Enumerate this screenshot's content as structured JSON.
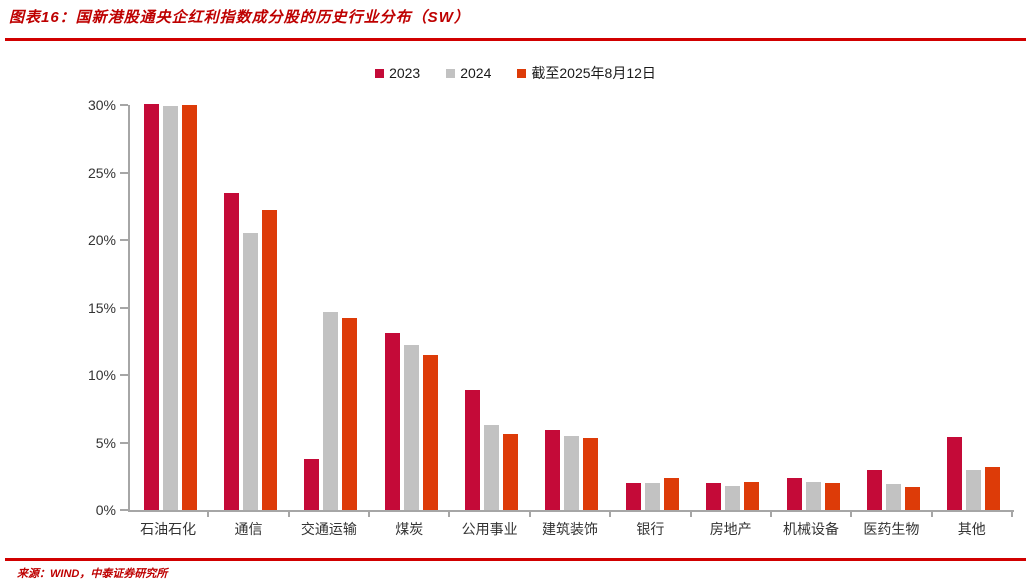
{
  "header": {
    "title": "图表16：国新港股通央企红利指数成分股的历史行业分布（SW）"
  },
  "footer": {
    "source": "来源：WIND，中泰证券研究所"
  },
  "colors": {
    "accent_red": "#D10000",
    "title_red": "#BE0000",
    "axis_gray": "#A6A6A6"
  },
  "chart_data": {
    "type": "bar",
    "title": "国新港股通央企红利指数成分股的历史行业分布（SW）",
    "categories": [
      "石油石化",
      "通信",
      "交通运输",
      "煤炭",
      "公用事业",
      "建筑装饰",
      "银行",
      "房地产",
      "机械设备",
      "医药生物",
      "其他"
    ],
    "series": [
      {
        "name": "2023",
        "color": "#C40A38",
        "values": [
          30.1,
          23.5,
          3.8,
          13.1,
          8.9,
          5.9,
          2.0,
          2.0,
          2.4,
          3.0,
          5.4
        ]
      },
      {
        "name": "2024",
        "color": "#C2C2C2",
        "values": [
          29.9,
          20.5,
          14.7,
          12.2,
          6.3,
          5.5,
          2.0,
          1.8,
          2.1,
          1.9,
          3.0
        ]
      },
      {
        "name": "截至2025年8月12日",
        "color": "#DD3B08",
        "values": [
          30.0,
          22.2,
          14.2,
          11.5,
          5.6,
          5.3,
          2.4,
          2.1,
          2.0,
          1.7,
          3.2
        ]
      }
    ],
    "xlabel": "",
    "ylabel": "",
    "ylim": [
      0,
      30
    ],
    "yticks": [
      {
        "value": 0,
        "label": "0%"
      },
      {
        "value": 5,
        "label": "5%"
      },
      {
        "value": 10,
        "label": "10%"
      },
      {
        "value": 15,
        "label": "15%"
      },
      {
        "value": 20,
        "label": "20%"
      },
      {
        "value": 25,
        "label": "25%"
      },
      {
        "value": 30,
        "label": "30%"
      }
    ],
    "grid": false,
    "legend_position": "top"
  }
}
